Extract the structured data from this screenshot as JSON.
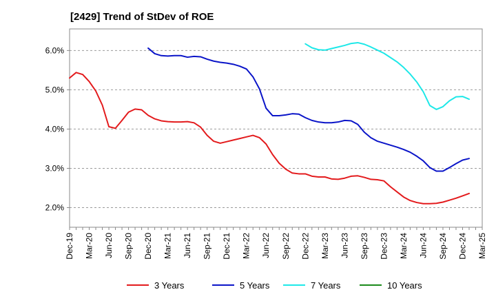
{
  "chart_data": {
    "type": "line",
    "title": "[2429]  Trend of StDev of ROE",
    "xlabel": "",
    "ylabel": "",
    "x_ticks": [
      "Dec-19",
      "Mar-20",
      "Jun-20",
      "Sep-20",
      "Dec-20",
      "Mar-21",
      "Jun-21",
      "Sep-21",
      "Dec-21",
      "Mar-22",
      "Jun-22",
      "Sep-22",
      "Dec-22",
      "Mar-23",
      "Jun-23",
      "Sep-23",
      "Dec-23",
      "Mar-24",
      "Jun-24",
      "Sep-24",
      "Dec-24",
      "Mar-25"
    ],
    "y_ticks": [
      "2.0%",
      "3.0%",
      "4.0%",
      "5.0%",
      "6.0%"
    ],
    "y_tick_values": [
      2.0,
      3.0,
      4.0,
      5.0,
      6.0
    ],
    "ylim": [
      1.5,
      6.55
    ],
    "x_range_months": [
      0,
      63
    ],
    "grid": "horizontal-dashed",
    "legend_position": "bottom",
    "series": [
      {
        "name": "3 Years",
        "color": "#e31a1c",
        "start_month": 0,
        "values": [
          5.3,
          5.44,
          5.39,
          5.21,
          4.97,
          4.61,
          4.06,
          4.02,
          4.22,
          4.43,
          4.51,
          4.49,
          4.35,
          4.26,
          4.21,
          4.19,
          4.18,
          4.18,
          4.19,
          4.16,
          4.05,
          3.84,
          3.69,
          3.64,
          3.68,
          3.72,
          3.76,
          3.8,
          3.84,
          3.78,
          3.62,
          3.35,
          3.13,
          2.98,
          2.88,
          2.86,
          2.86,
          2.8,
          2.78,
          2.78,
          2.73,
          2.72,
          2.75,
          2.8,
          2.81,
          2.77,
          2.72,
          2.71,
          2.68,
          2.53,
          2.4,
          2.27,
          2.18,
          2.13,
          2.1,
          2.1,
          2.11,
          2.14,
          2.19,
          2.24,
          2.3,
          2.36
        ]
      },
      {
        "name": "5 Years",
        "color": "#0a14c8",
        "start_month": 12,
        "values": [
          6.06,
          5.92,
          5.87,
          5.86,
          5.87,
          5.87,
          5.83,
          5.85,
          5.84,
          5.78,
          5.73,
          5.7,
          5.68,
          5.65,
          5.6,
          5.53,
          5.33,
          5.02,
          4.53,
          4.34,
          4.34,
          4.36,
          4.39,
          4.38,
          4.29,
          4.22,
          4.18,
          4.16,
          4.16,
          4.18,
          4.22,
          4.21,
          4.12,
          3.92,
          3.78,
          3.69,
          3.64,
          3.59,
          3.54,
          3.48,
          3.41,
          3.31,
          3.19,
          3.02,
          2.93,
          2.93,
          3.02,
          3.12,
          3.21,
          3.25
        ]
      },
      {
        "name": "7 Years",
        "color": "#1de8e8",
        "start_month": 36,
        "values": [
          6.17,
          6.07,
          6.02,
          6.01,
          6.05,
          6.09,
          6.13,
          6.18,
          6.2,
          6.16,
          6.09,
          6.01,
          5.93,
          5.82,
          5.71,
          5.57,
          5.4,
          5.2,
          4.95,
          4.6,
          4.5,
          4.57,
          4.72,
          4.82,
          4.83,
          4.76
        ]
      },
      {
        "name": "10 Years",
        "color": "#1a8a1a",
        "start_month": 0,
        "values": []
      }
    ]
  }
}
